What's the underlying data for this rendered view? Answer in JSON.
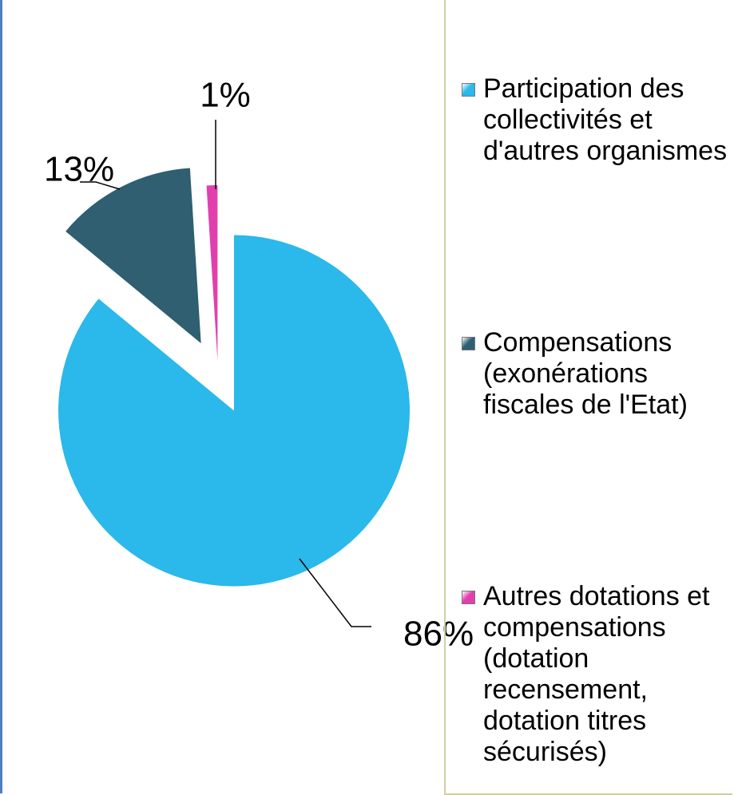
{
  "chart_data": {
    "type": "pie",
    "categories": [
      "Participation des collectivités et d'autres organismes",
      "Compensations (exonérations fiscales de l'Etat)",
      "Autres dotations et compensations (dotation recensement, dotation titres sécurisés)"
    ],
    "values": [
      86,
      13,
      1
    ],
    "value_labels": [
      "86%",
      "13%",
      "1%"
    ],
    "colors": [
      "#2bb8ea",
      "#2f5f70",
      "#e23fae"
    ],
    "legend": "right"
  }
}
